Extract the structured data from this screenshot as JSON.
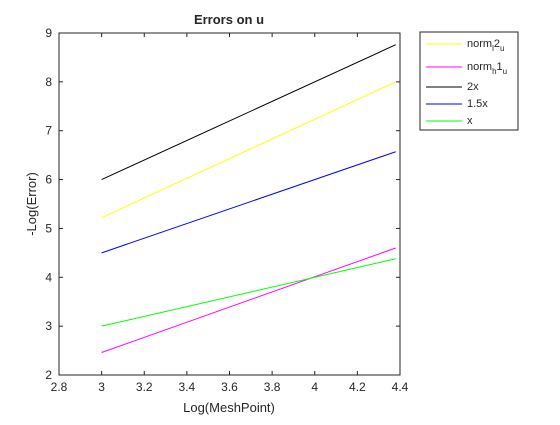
{
  "chart_data": {
    "type": "line",
    "title": "Errors on u",
    "xlabel": "Log(MeshPoint)",
    "ylabel": "-Log(Error)",
    "xlim": [
      2.8,
      4.4
    ],
    "ylim": [
      2,
      9
    ],
    "xticks": [
      "2.8",
      "3",
      "3.2",
      "3.4",
      "3.6",
      "3.8",
      "4",
      "4.2",
      "4.4"
    ],
    "yticks": [
      "2",
      "3",
      "4",
      "5",
      "6",
      "7",
      "8",
      "9"
    ],
    "grid": false,
    "legend_position": "outside-top-right",
    "series": [
      {
        "name_main": "norm",
        "name_sub": "l",
        "name_rest": "2",
        "name_sub2": "u",
        "color": "#ffff00",
        "x": [
          3,
          4.38
        ],
        "y": [
          5.22,
          8.0
        ]
      },
      {
        "name_main": "norm",
        "name_sub": "h",
        "name_rest": "1",
        "name_sub2": "u",
        "color": "#ff00ff",
        "x": [
          3,
          4.38
        ],
        "y": [
          2.46,
          4.6
        ]
      },
      {
        "name_main": "2x",
        "color": "#000000",
        "x": [
          3,
          4.38
        ],
        "y": [
          6.0,
          8.76
        ]
      },
      {
        "name_main": "1.5x",
        "color": "#0000ff",
        "x": [
          3,
          4.38
        ],
        "y": [
          4.5,
          6.57
        ]
      },
      {
        "name_main": "x",
        "color": "#00ff00",
        "x": [
          3,
          4.38
        ],
        "y": [
          3.0,
          4.38
        ]
      }
    ]
  }
}
